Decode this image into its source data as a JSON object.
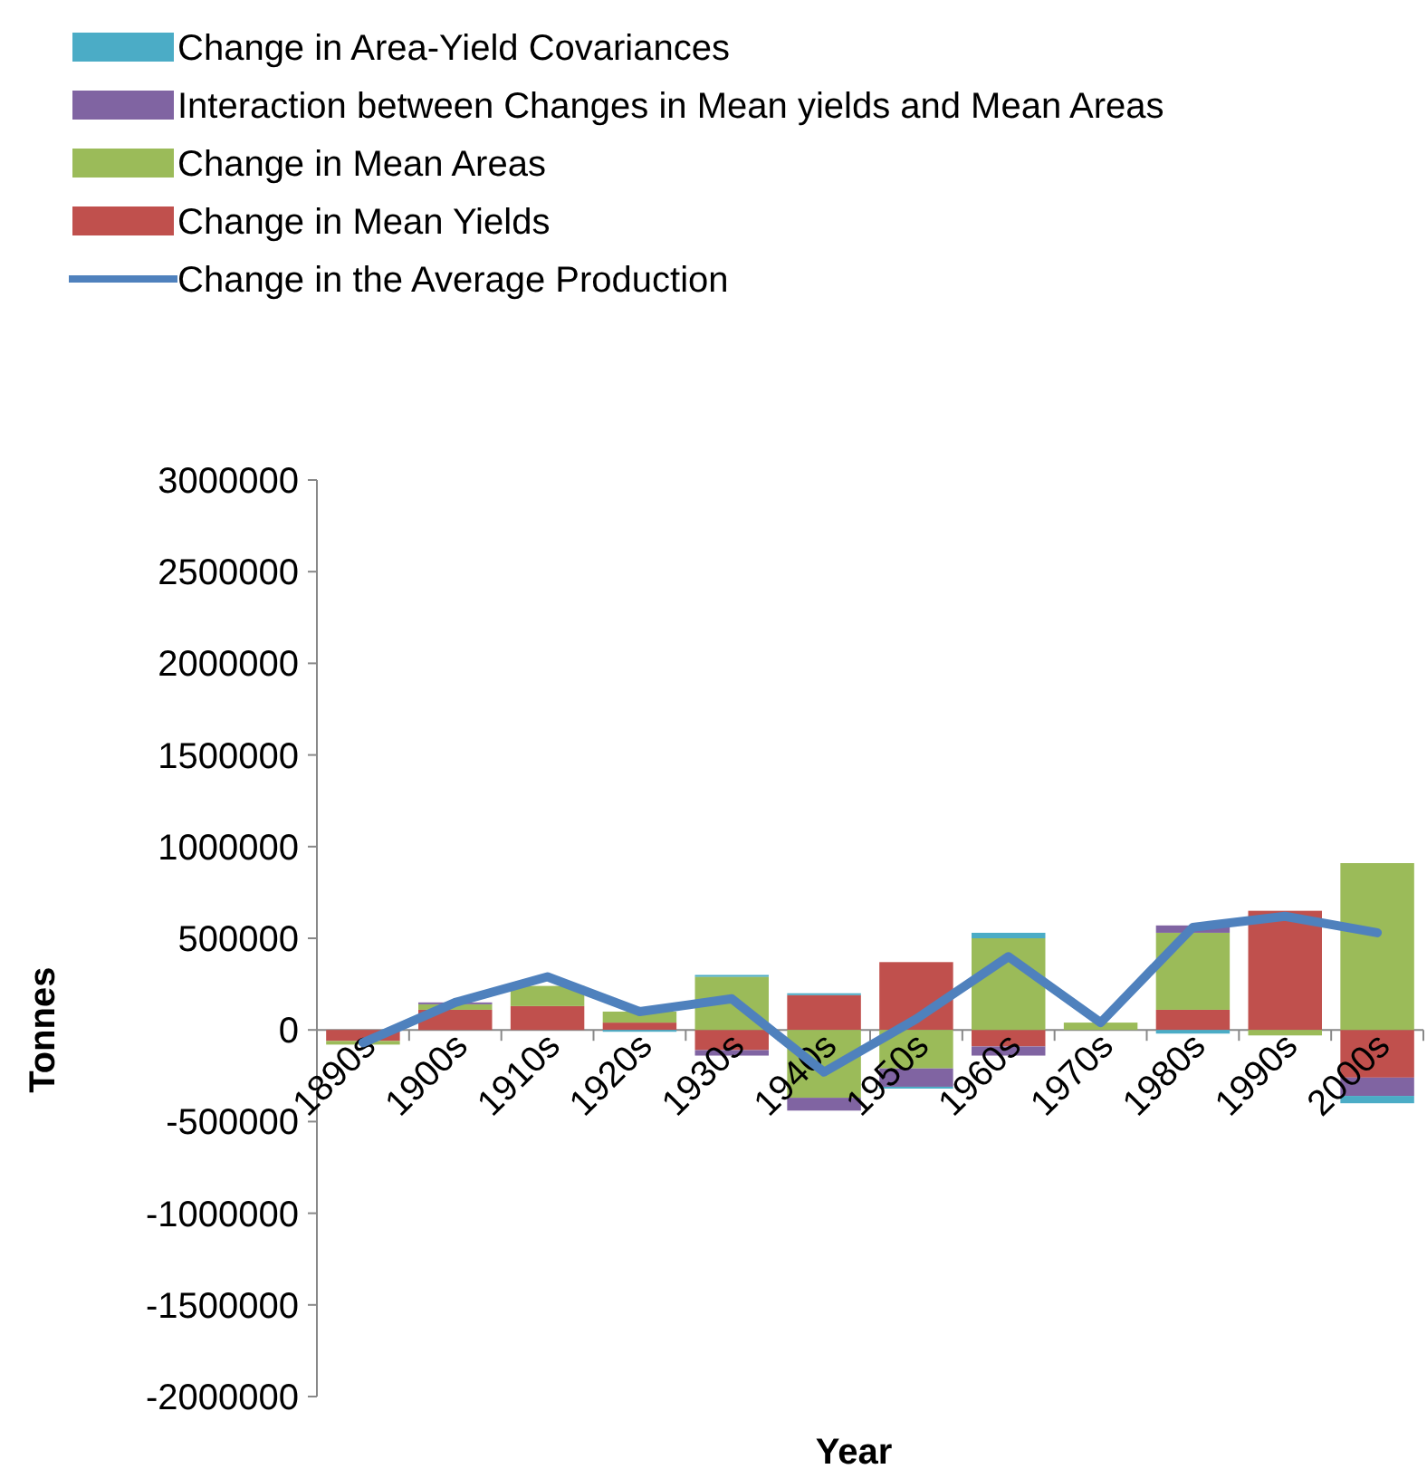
{
  "chart_data": {
    "type": "bar",
    "stacked": true,
    "xlabel": "Year",
    "ylabel": "Tonnes",
    "categories": [
      "1890s",
      "1900s",
      "1910s",
      "1920s",
      "1930s",
      "1940s",
      "1950s",
      "1960s",
      "1970s",
      "1980s",
      "1990s",
      "2000s"
    ],
    "series": [
      {
        "name": "Change in Mean Yields",
        "color": "#c0504d",
        "values": [
          -60000,
          110000,
          130000,
          40000,
          -110000,
          190000,
          370000,
          -90000,
          null,
          110000,
          650000,
          -260000
        ]
      },
      {
        "name": "Change in Mean Areas",
        "color": "#9bbb59",
        "values": [
          -20000,
          30000,
          110000,
          60000,
          290000,
          -370000,
          -210000,
          500000,
          40000,
          420000,
          -30000,
          910000
        ]
      },
      {
        "name": "Interaction between Changes in Mean yields and Mean Areas",
        "color": "#8064a2",
        "values": [
          null,
          10000,
          null,
          null,
          -30000,
          -70000,
          -100000,
          -50000,
          null,
          40000,
          null,
          -100000
        ]
      },
      {
        "name": "Change in Area-Yield Covariances",
        "color": "#4bacc6",
        "values": [
          null,
          null,
          null,
          -10000,
          10000,
          10000,
          -10000,
          30000,
          null,
          -20000,
          null,
          -40000
        ]
      },
      {
        "name": "Change in the Average Production",
        "color": "#4f81bd",
        "type": "line",
        "values": [
          -70000,
          150000,
          290000,
          100000,
          170000,
          -230000,
          60000,
          400000,
          40000,
          560000,
          620000,
          530000
        ]
      }
    ],
    "ylim": [
      -2000000,
      3000000
    ],
    "yticks": [
      -2000000,
      -1500000,
      -1000000,
      -500000,
      0,
      500000,
      1000000,
      1500000,
      2000000,
      2500000,
      3000000
    ],
    "grid": false,
    "legend": "top left"
  }
}
